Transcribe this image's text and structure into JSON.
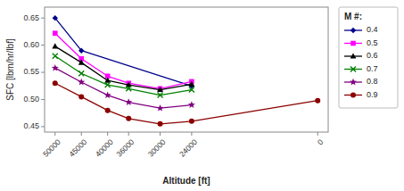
{
  "chart_data": {
    "type": "line",
    "xlabel": "Altitude [ft]",
    "ylabel": "SFC [lbm/hr/lbf]",
    "legend_title": "M #:",
    "x": [
      50000,
      45000,
      40000,
      36000,
      30000,
      24000,
      0
    ],
    "series": [
      {
        "name": "0.4",
        "color": "#00008B",
        "marker": "diamond",
        "x": [
          50000,
          45000,
          24000
        ],
        "values": [
          0.65,
          0.59,
          0.525
        ]
      },
      {
        "name": "0.5",
        "color": "#FF00FF",
        "marker": "square",
        "values": [
          0.622,
          0.575,
          0.543,
          0.53,
          0.52,
          0.533,
          null
        ]
      },
      {
        "name": "0.6",
        "color": "#000000",
        "marker": "triangle",
        "values": [
          0.598,
          0.568,
          0.535,
          0.527,
          0.518,
          0.528,
          null
        ]
      },
      {
        "name": "0.7",
        "color": "#008000",
        "marker": "x",
        "values": [
          0.58,
          0.548,
          0.527,
          0.52,
          0.508,
          0.518,
          null
        ]
      },
      {
        "name": "0.8",
        "color": "#800080",
        "marker": "star",
        "values": [
          0.558,
          0.532,
          0.508,
          0.495,
          0.484,
          0.49,
          null
        ]
      },
      {
        "name": "0.9",
        "color": "#8B0000",
        "marker": "circle",
        "values": [
          0.53,
          0.505,
          0.48,
          0.465,
          0.455,
          0.46,
          0.498
        ]
      }
    ],
    "xlim": [
      52000,
      -2000
    ],
    "xticks": [
      50000,
      45000,
      40000,
      36000,
      30000,
      24000,
      0
    ],
    "ylim": [
      0.44,
      0.67
    ],
    "yticks": [
      0.45,
      {
        "value": 0.5,
        "label": "0.50"
      },
      0.55,
      {
        "value": 0.6,
        "label": "0.60"
      },
      0.65
    ],
    "grid": false,
    "legend": "right"
  }
}
